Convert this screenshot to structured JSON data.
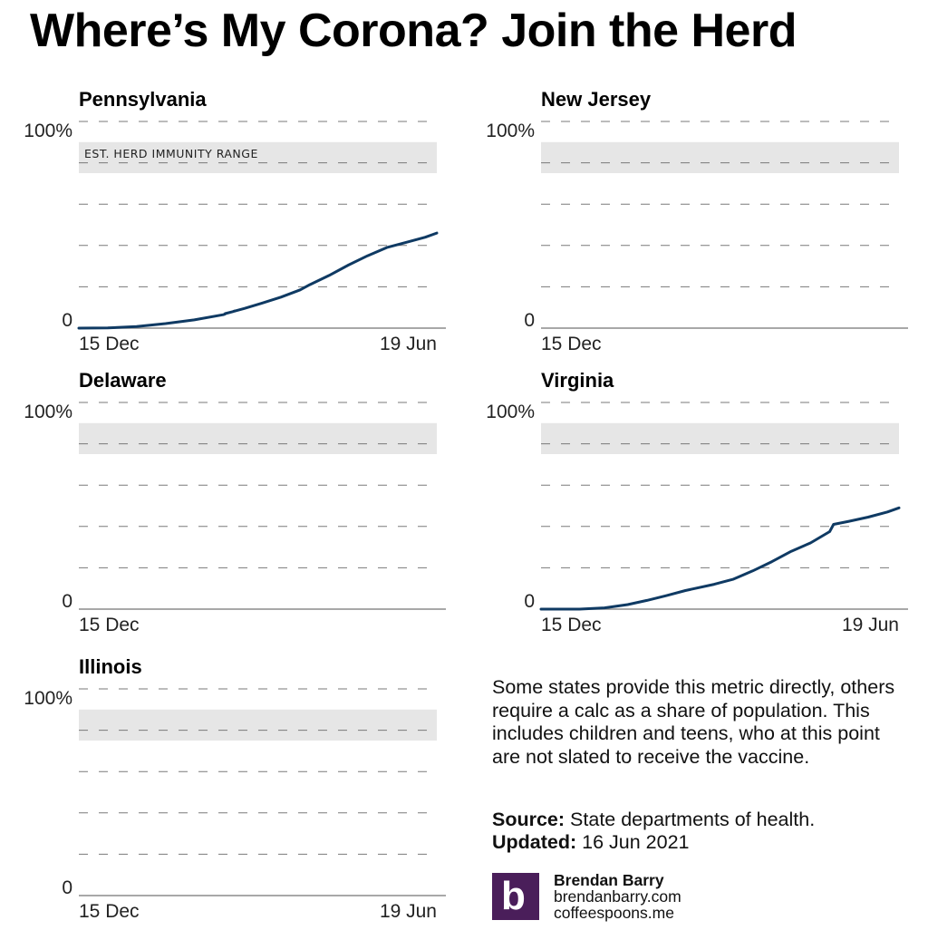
{
  "title": "Where’s My Corona? Join the Herd",
  "band_label": "EST. HERD IMMUNITY RANGE",
  "colors": {
    "series": "#0f3a63",
    "band": "#e6e6e6",
    "grid": "#7a7a7a",
    "brand": "#4a1e5a"
  },
  "chart_data": [
    {
      "type": "line",
      "title": "Pennsylvania",
      "ylim": [
        0,
        100
      ],
      "y_tick_labels": [
        "100%",
        "0"
      ],
      "x_start_label": "15 Dec",
      "x_end_label": "19 Jun",
      "xlim_days": [
        0,
        186
      ],
      "herd_immunity_range": [
        75,
        90
      ],
      "gridlines": [
        20,
        40,
        60,
        80,
        100
      ],
      "series": [
        {
          "name": "Pennsylvania",
          "x": [
            0,
            15,
            30,
            45,
            60,
            75,
            80,
            86,
            95,
            105,
            115,
            120,
            130,
            140,
            150,
            160,
            170,
            180,
            186
          ],
          "y": [
            0,
            0.1,
            0.8,
            2.2,
            4,
            6.5,
            8,
            9.5,
            12,
            15,
            18.5,
            21,
            25.5,
            30.5,
            35,
            39,
            41.5,
            44,
            46
          ],
          "gaps_between_x": [
            [
              76,
              81
            ]
          ]
        }
      ]
    },
    {
      "type": "line",
      "title": "New Jersey",
      "ylim": [
        0,
        100
      ],
      "y_tick_labels": [
        "100%",
        "0"
      ],
      "x_start_label": "15 Dec",
      "herd_immunity_range": [
        75,
        90
      ],
      "gridlines": [
        20,
        40,
        60,
        80,
        100
      ],
      "series": []
    },
    {
      "type": "line",
      "title": "Delaware",
      "ylim": [
        0,
        100
      ],
      "y_tick_labels": [
        "100%",
        "0"
      ],
      "x_start_label": "15 Dec",
      "herd_immunity_range": [
        75,
        90
      ],
      "gridlines": [
        20,
        40,
        60,
        80,
        100
      ],
      "series": []
    },
    {
      "type": "line",
      "title": "Virginia",
      "ylim": [
        0,
        100
      ],
      "y_tick_labels": [
        "100%",
        "0"
      ],
      "x_start_label": "15 Dec",
      "x_end_label": "19 Jun",
      "xlim_days": [
        0,
        186
      ],
      "herd_immunity_range": [
        75,
        90
      ],
      "gridlines": [
        20,
        40,
        60,
        80,
        100
      ],
      "series": [
        {
          "name": "Virginia",
          "x": [
            0,
            20,
            33,
            45,
            55,
            65,
            75,
            90,
            100,
            110,
            120,
            130,
            140,
            150,
            152,
            160,
            170,
            180,
            186
          ],
          "y": [
            0,
            0,
            0.6,
            2.2,
            4.2,
            6.5,
            9,
            12,
            14.5,
            18.5,
            23,
            28,
            32,
            37.5,
            41,
            42.5,
            44.5,
            47,
            49
          ]
        }
      ]
    },
    {
      "type": "line",
      "title": "Illinois",
      "ylim": [
        0,
        100
      ],
      "y_tick_labels": [
        "100%",
        "0"
      ],
      "x_start_label": "15 Dec",
      "x_end_label": "19 Jun",
      "herd_immunity_range": [
        75,
        90
      ],
      "gridlines": [
        20,
        40,
        60,
        80,
        100
      ],
      "series": []
    }
  ],
  "note": "Some states provide this metric directly, others require a calc as a share of population. This includes children and teens, who at this point are not slated to receive the vaccine.",
  "source_label": "Source:",
  "source_text": "State departments of health.",
  "updated_label": "Updated:",
  "updated_text": "16 Jun 2021",
  "brand": {
    "logo_letter": "b",
    "name": "Brendan Barry",
    "site1": "brendanbarry.com",
    "site2": "coffeespoons.me"
  }
}
